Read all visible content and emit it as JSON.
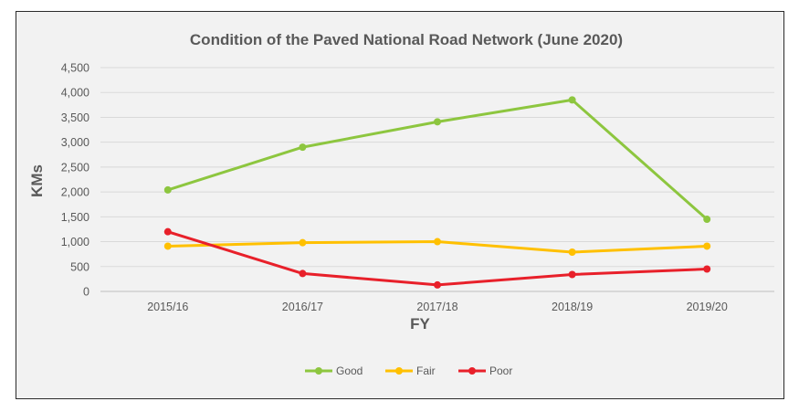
{
  "chart_data": {
    "type": "line",
    "title": "Condition of the Paved National Road Network (June 2020)",
    "xlabel": "FY",
    "ylabel": "KMs",
    "categories": [
      "2015/16",
      "2016/17",
      "2017/18",
      "2018/19",
      "2019/20"
    ],
    "ylim": [
      0,
      4500
    ],
    "yticks": [
      0,
      500,
      1000,
      1500,
      2000,
      2500,
      3000,
      3500,
      4000,
      4500
    ],
    "ytick_labels": [
      "0",
      "500",
      "1,000",
      "1,500",
      "2,000",
      "2,500",
      "3,000",
      "3,500",
      "4,000",
      "4,500"
    ],
    "grid": true,
    "legend_position": "bottom",
    "series": [
      {
        "name": "Good",
        "color": "#8dc63f",
        "values": [
          2040,
          2900,
          3410,
          3850,
          1450
        ]
      },
      {
        "name": "Fair",
        "color": "#ffc000",
        "values": [
          910,
          980,
          1000,
          790,
          910
        ]
      },
      {
        "name": "Poor",
        "color": "#e8202a",
        "values": [
          1200,
          360,
          130,
          340,
          450
        ]
      }
    ]
  }
}
